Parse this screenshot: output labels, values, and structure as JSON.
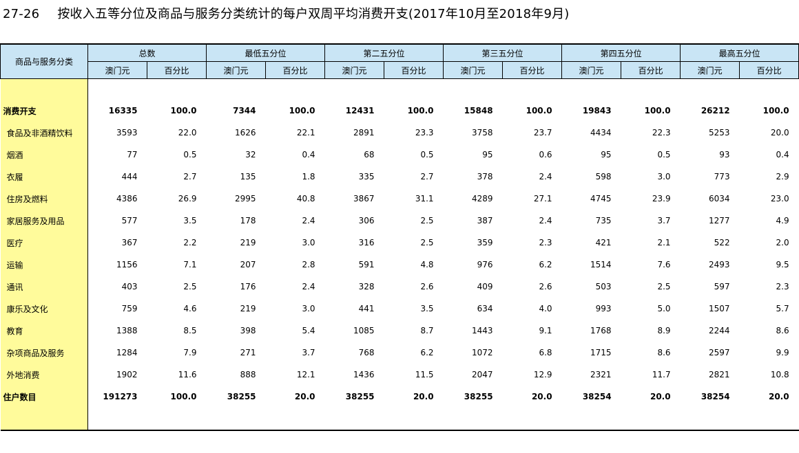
{
  "title": {
    "number": "27-26",
    "text": "按收入五等分位及商品与服务分类统计的每户双周平均消费开支(2017年10月至2018年9月)"
  },
  "header": {
    "stub": "商品与服务分类",
    "groups": [
      "总数",
      "最低五分位",
      "第二五分位",
      "第三五分位",
      "第四五分位",
      "最高五分位"
    ],
    "sub_value": "澳门元",
    "sub_percent": "百分比"
  },
  "rows": [
    {
      "label": "消费开支",
      "bold": true,
      "values": [
        "16335",
        "100.0",
        "7344",
        "100.0",
        "12431",
        "100.0",
        "15848",
        "100.0",
        "19843",
        "100.0",
        "26212",
        "100.0"
      ]
    },
    {
      "label": "食品及非酒精饮料",
      "bold": false,
      "values": [
        "3593",
        "22.0",
        "1626",
        "22.1",
        "2891",
        "23.3",
        "3758",
        "23.7",
        "4434",
        "22.3",
        "5253",
        "20.0"
      ]
    },
    {
      "label": "烟酒",
      "bold": false,
      "values": [
        "77",
        "0.5",
        "32",
        "0.4",
        "68",
        "0.5",
        "95",
        "0.6",
        "95",
        "0.5",
        "93",
        "0.4"
      ]
    },
    {
      "label": "衣履",
      "bold": false,
      "values": [
        "444",
        "2.7",
        "135",
        "1.8",
        "335",
        "2.7",
        "378",
        "2.4",
        "598",
        "3.0",
        "773",
        "2.9"
      ]
    },
    {
      "label": "住房及燃料",
      "bold": false,
      "values": [
        "4386",
        "26.9",
        "2995",
        "40.8",
        "3867",
        "31.1",
        "4289",
        "27.1",
        "4745",
        "23.9",
        "6034",
        "23.0"
      ]
    },
    {
      "label": "家居服务及用品",
      "bold": false,
      "values": [
        "577",
        "3.5",
        "178",
        "2.4",
        "306",
        "2.5",
        "387",
        "2.4",
        "735",
        "3.7",
        "1277",
        "4.9"
      ]
    },
    {
      "label": "医疗",
      "bold": false,
      "values": [
        "367",
        "2.2",
        "219",
        "3.0",
        "316",
        "2.5",
        "359",
        "2.3",
        "421",
        "2.1",
        "522",
        "2.0"
      ]
    },
    {
      "label": "运输",
      "bold": false,
      "values": [
        "1156",
        "7.1",
        "207",
        "2.8",
        "591",
        "4.8",
        "976",
        "6.2",
        "1514",
        "7.6",
        "2493",
        "9.5"
      ]
    },
    {
      "label": "通讯",
      "bold": false,
      "values": [
        "403",
        "2.5",
        "176",
        "2.4",
        "328",
        "2.6",
        "409",
        "2.6",
        "503",
        "2.5",
        "597",
        "2.3"
      ]
    },
    {
      "label": "康乐及文化",
      "bold": false,
      "values": [
        "759",
        "4.6",
        "219",
        "3.0",
        "441",
        "3.5",
        "634",
        "4.0",
        "993",
        "5.0",
        "1507",
        "5.7"
      ]
    },
    {
      "label": "教育",
      "bold": false,
      "values": [
        "1388",
        "8.5",
        "398",
        "5.4",
        "1085",
        "8.7",
        "1443",
        "9.1",
        "1768",
        "8.9",
        "2244",
        "8.6"
      ]
    },
    {
      "label": "杂项商品及服务",
      "bold": false,
      "values": [
        "1284",
        "7.9",
        "271",
        "3.7",
        "768",
        "6.2",
        "1072",
        "6.8",
        "1715",
        "8.6",
        "2597",
        "9.9"
      ]
    },
    {
      "label": "外地消费",
      "bold": false,
      "values": [
        "1902",
        "11.6",
        "888",
        "12.1",
        "1436",
        "11.5",
        "2047",
        "12.9",
        "2321",
        "11.7",
        "2821",
        "10.8"
      ]
    },
    {
      "label": "住户数目",
      "bold": true,
      "values": [
        "191273",
        "100.0",
        "38255",
        "20.0",
        "38255",
        "20.0",
        "38255",
        "20.0",
        "38254",
        "20.0",
        "38254",
        "20.0"
      ]
    }
  ]
}
